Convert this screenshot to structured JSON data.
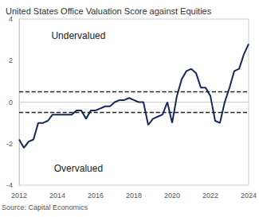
{
  "chart_data": {
    "type": "line",
    "title": "United States Office Valuation Score against Equities",
    "source": "Source: Capital Economics",
    "x": [
      2012,
      2012.25,
      2012.5,
      2012.75,
      2013,
      2013.25,
      2013.5,
      2013.75,
      2014,
      2014.25,
      2014.5,
      2014.75,
      2015,
      2015.25,
      2015.5,
      2015.75,
      2016,
      2016.25,
      2016.5,
      2016.75,
      2017,
      2017.25,
      2017.5,
      2017.75,
      2018,
      2018.25,
      2018.5,
      2018.75,
      2019,
      2019.25,
      2019.5,
      2019.75,
      2020,
      2020.25,
      2020.5,
      2020.75,
      2021,
      2021.25,
      2021.5,
      2021.75,
      2022,
      2022.25,
      2022.5,
      2022.75,
      2023,
      2023.25,
      2023.5,
      2023.75,
      2024
    ],
    "values": [
      -1.8,
      -2.2,
      -1.9,
      -1.8,
      -1.0,
      -1.0,
      -0.9,
      -0.6,
      -0.6,
      -0.6,
      -0.6,
      -0.6,
      -0.4,
      -0.4,
      -0.8,
      -0.4,
      -0.4,
      -0.3,
      -0.2,
      -0.2,
      0.0,
      0.1,
      0.1,
      0.2,
      0.1,
      0.0,
      0.0,
      -1.1,
      -0.8,
      -0.7,
      -0.6,
      0.0,
      -1.0,
      0.3,
      1.1,
      1.5,
      1.6,
      1.4,
      0.7,
      0.7,
      0.3,
      -0.9,
      -1.0,
      0.0,
      0.7,
      1.5,
      1.6,
      2.3,
      2.8
    ],
    "color": "#14285a",
    "xlim": [
      2012,
      2024
    ],
    "xticks": [
      2012,
      2014,
      2016,
      2018,
      2020,
      2022,
      2024
    ],
    "ylim": [
      -4,
      4
    ],
    "yticks": [
      -4,
      -2,
      0,
      2,
      4
    ],
    "thresholds": [
      0.5,
      -0.5
    ],
    "annotations": [
      {
        "text": "Undervalued",
        "x": 2015.1,
        "y": 3.2
      },
      {
        "text": "Overvalued",
        "x": 2015.1,
        "y": -3.2
      }
    ],
    "grid": false
  }
}
